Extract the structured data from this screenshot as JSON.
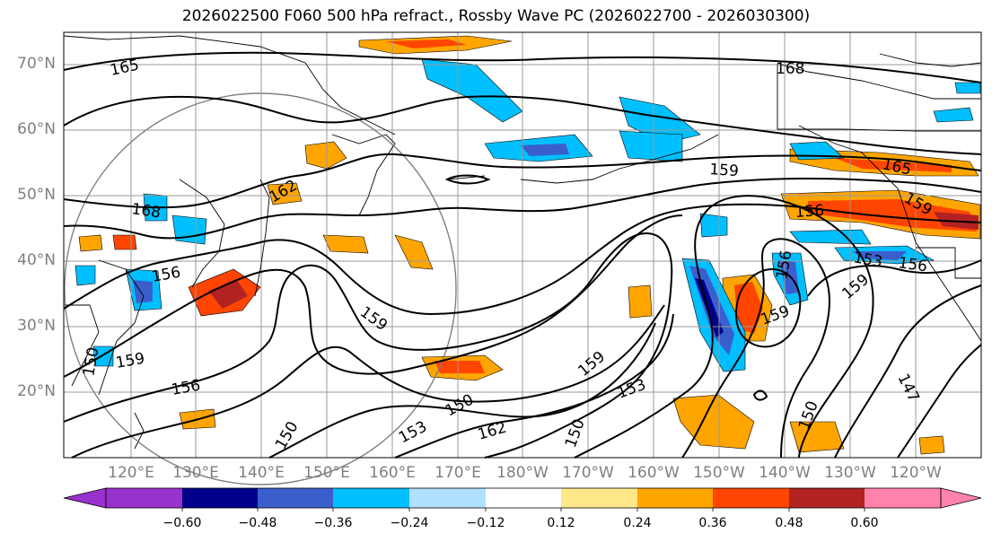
{
  "title": "2026022500 F060 500 hPa refract., Rossby Wave PC (2026022700 - 2026030300)",
  "lat_labels": [
    "70°N",
    "60°N",
    "50°N",
    "40°N",
    "30°N",
    "20°N"
  ],
  "lon_labels": [
    "120°E",
    "130°E",
    "140°E",
    "150°E",
    "160°E",
    "170°E",
    "180°W",
    "170°W",
    "160°W",
    "150°W",
    "140°W",
    "130°W",
    "120°W"
  ],
  "contour_labels": [
    "165",
    "168",
    "159",
    "165",
    "159",
    "168",
    "162",
    "156",
    "156",
    "159",
    "159",
    "156",
    "150",
    "159",
    "153",
    "150",
    "153",
    "162",
    "150",
    "150",
    "159",
    "159",
    "153",
    "156",
    "156",
    "159",
    "147",
    "150"
  ],
  "colorbar": {
    "ticks": [
      "−0.60",
      "−0.48",
      "−0.36",
      "−0.24",
      "−0.12",
      "0.12",
      "0.24",
      "0.36",
      "0.48",
      "0.60"
    ],
    "colors": [
      "#9932cc",
      "#00008b",
      "#3a5fcd",
      "#00bfff",
      "#b0e2ff",
      "#ffffff",
      "#ffe88a",
      "#ffa500",
      "#ff4500",
      "#b22222",
      "#ff82ab"
    ]
  },
  "colors": {
    "contour": "#000000",
    "grid": "#9a9a9a",
    "circle": "#808080",
    "axis_label": "#7f7f7f"
  }
}
